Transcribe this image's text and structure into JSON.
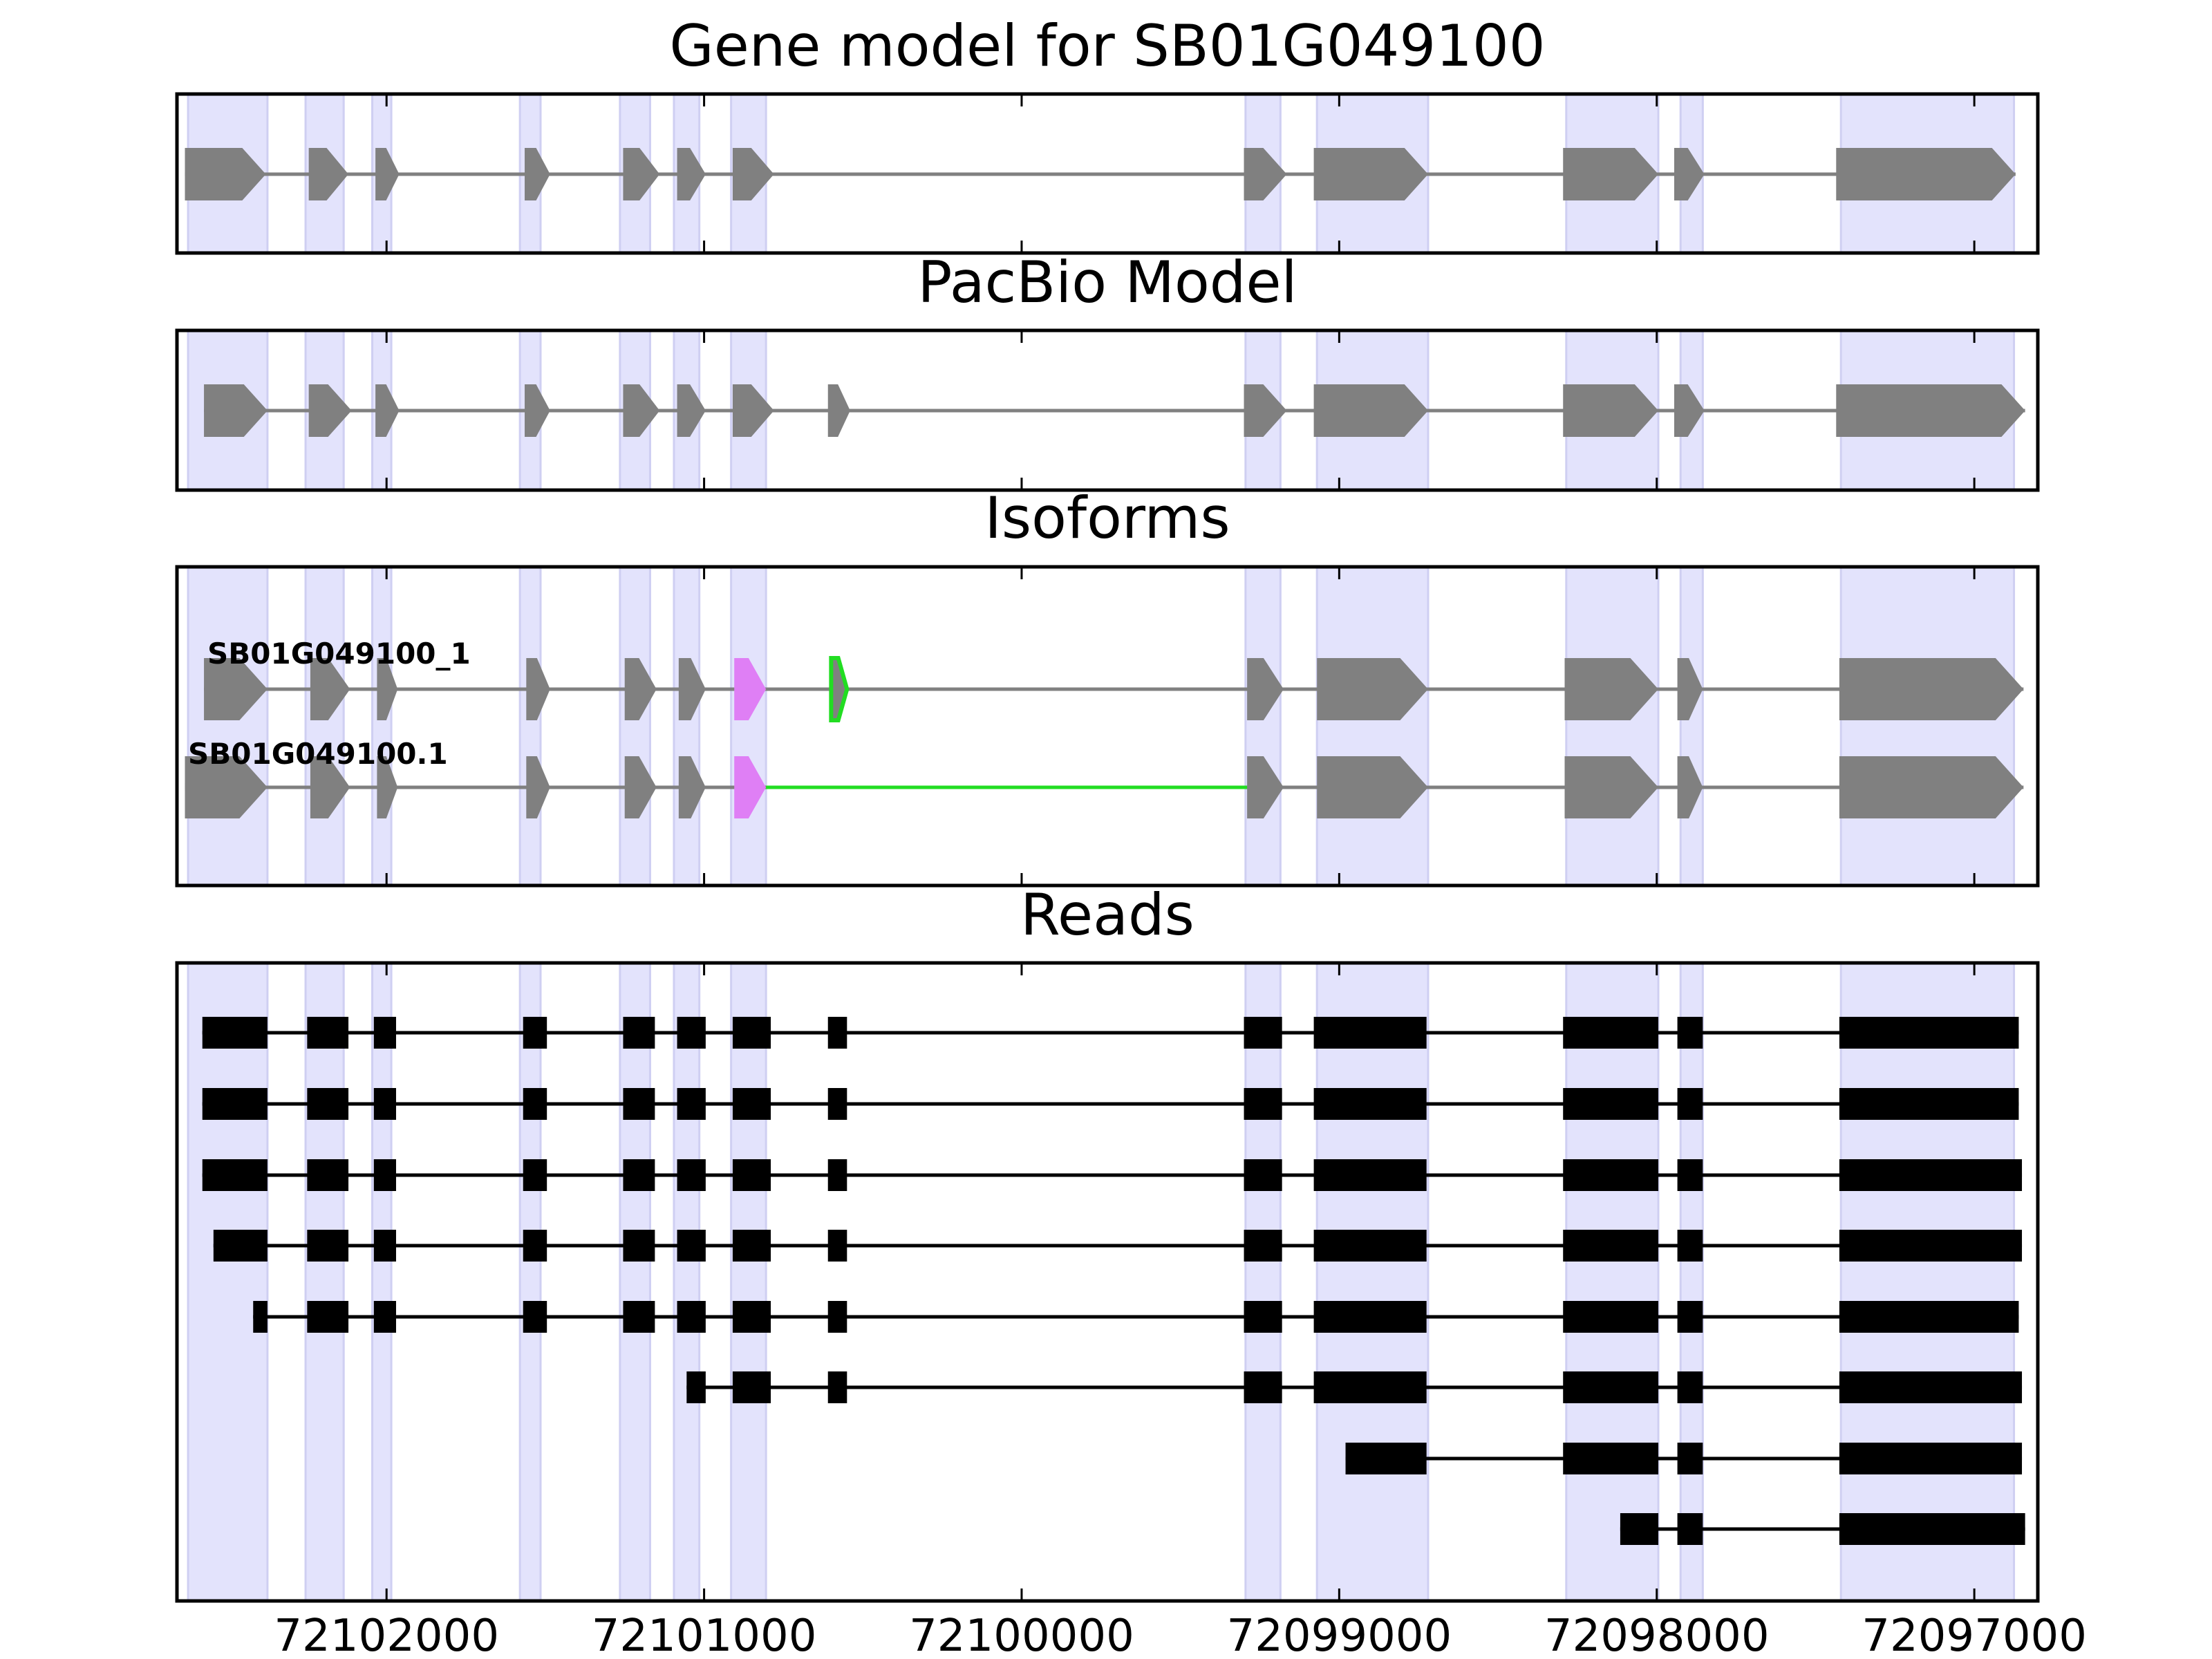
{
  "chart_data": {
    "type": "gene_model_tracks",
    "strand": "-",
    "x_axis_reversed": true,
    "xlim": [
      72102660,
      72096800
    ],
    "xticks": [
      72102000,
      72101000,
      72100000,
      72099000,
      72098000,
      72097000
    ],
    "xtick_labels": [
      "72102000",
      "72101000",
      "72100000",
      "72099000",
      "72098000",
      "72097000"
    ],
    "highlight_color": "#e3e3fc",
    "gene_color": "#808080",
    "read_color": "#000000",
    "alt_exon_color": "#df7ff5",
    "alt_junction_color": "#22dd22",
    "highlight_regions": [
      [
        72102625,
        72102375
      ],
      [
        72102255,
        72102135
      ],
      [
        72102045,
        72101985
      ],
      [
        72101580,
        72101515
      ],
      [
        72101265,
        72101170
      ],
      [
        72101095,
        72101015
      ],
      [
        72100915,
        72100805
      ],
      [
        72099295,
        72099185
      ],
      [
        72099070,
        72098720
      ],
      [
        72098285,
        72097995
      ],
      [
        72097925,
        72097855
      ],
      [
        72097420,
        72096875
      ]
    ],
    "panels": [
      {
        "title": "Gene model for SB01G049100",
        "tracks": [
          {
            "label": "",
            "exons": [
              [
                72102635,
                72102380
              ],
              [
                72102245,
                72102120
              ],
              [
                72102035,
                72101960
              ],
              [
                72101565,
                72101485
              ],
              [
                72101255,
                72101140
              ],
              [
                72101085,
                72100995
              ],
              [
                72100910,
                72100780
              ],
              [
                72099300,
                72099165
              ],
              [
                72099080,
                72098720
              ],
              [
                72098295,
                72097995
              ],
              [
                72097945,
                72097850
              ],
              [
                72097435,
                72096870
              ]
            ]
          }
        ]
      },
      {
        "title": "PacBio Model",
        "tracks": [
          {
            "label": "",
            "exons": [
              [
                72102575,
                72102375
              ],
              [
                72102245,
                72102110
              ],
              [
                72102035,
                72101960
              ],
              [
                72101565,
                72101485
              ],
              [
                72101255,
                72101140
              ],
              [
                72101085,
                72100995
              ],
              [
                72100910,
                72100780
              ],
              [
                72100610,
                72100540
              ],
              [
                72099300,
                72099165
              ],
              [
                72099080,
                72098720
              ],
              [
                72098295,
                72097995
              ],
              [
                72097945,
                72097850
              ],
              [
                72097435,
                72096840
              ]
            ]
          }
        ]
      },
      {
        "title": "Isoforms",
        "tracks": [
          {
            "label": "SB01G049100_1",
            "exons": [
              [
                72102575,
                72102375
              ],
              [
                72102240,
                72102115
              ],
              [
                72102030,
                72101965
              ],
              [
                72101560,
                72101485
              ],
              [
                72101250,
                72101150
              ],
              [
                72101080,
                72100995
              ],
              [
                72100905,
                72100805,
                "alt"
              ],
              [
                72100600,
                72100550,
                "alt_junction"
              ],
              [
                72099290,
                72099175
              ],
              [
                72099070,
                72098720
              ],
              [
                72098290,
                72097995
              ],
              [
                72097935,
                72097855
              ],
              [
                72097425,
                72096845
              ]
            ]
          },
          {
            "label": "SB01G049100.1",
            "exons": [
              [
                72102635,
                72102375
              ],
              [
                72102240,
                72102115
              ],
              [
                72102030,
                72101965
              ],
              [
                72101560,
                72101485
              ],
              [
                72101250,
                72101150
              ],
              [
                72101080,
                72100995
              ],
              [
                72100905,
                72100805,
                "alt"
              ],
              [
                72099290,
                72099175
              ],
              [
                72099070,
                72098720
              ],
              [
                72098290,
                72097995
              ],
              [
                72097935,
                72097855
              ],
              [
                72097425,
                72096845
              ]
            ],
            "alt_junctions": [
              [
                72100805,
                72099290
              ]
            ]
          }
        ]
      },
      {
        "title": "Reads",
        "tracks": [
          {
            "label": "",
            "exons": [
              [
                72102580,
                72102375
              ],
              [
                72102250,
                72102120
              ],
              [
                72102040,
                72101970
              ],
              [
                72101570,
                72101495
              ],
              [
                72101255,
                72101155
              ],
              [
                72101085,
                72100995
              ],
              [
                72100910,
                72100790
              ],
              [
                72100610,
                72100550
              ],
              [
                72099300,
                72099180
              ],
              [
                72099080,
                72098725
              ],
              [
                72098295,
                72097995
              ],
              [
                72097935,
                72097855
              ],
              [
                72097425,
                72096860
              ]
            ]
          },
          {
            "label": "",
            "exons": [
              [
                72102580,
                72102375
              ],
              [
                72102250,
                72102120
              ],
              [
                72102040,
                72101970
              ],
              [
                72101570,
                72101495
              ],
              [
                72101255,
                72101155
              ],
              [
                72101085,
                72100995
              ],
              [
                72100910,
                72100790
              ],
              [
                72100610,
                72100550
              ],
              [
                72099300,
                72099180
              ],
              [
                72099080,
                72098725
              ],
              [
                72098295,
                72097995
              ],
              [
                72097935,
                72097855
              ],
              [
                72097425,
                72096860
              ]
            ]
          },
          {
            "label": "",
            "exons": [
              [
                72102580,
                72102375
              ],
              [
                72102250,
                72102120
              ],
              [
                72102040,
                72101970
              ],
              [
                72101570,
                72101495
              ],
              [
                72101255,
                72101155
              ],
              [
                72101085,
                72100995
              ],
              [
                72100910,
                72100790
              ],
              [
                72100610,
                72100550
              ],
              [
                72099300,
                72099180
              ],
              [
                72099080,
                72098725
              ],
              [
                72098295,
                72097995
              ],
              [
                72097935,
                72097855
              ],
              [
                72097425,
                72096850
              ]
            ]
          },
          {
            "label": "",
            "exons": [
              [
                72102545,
                72102375
              ],
              [
                72102250,
                72102120
              ],
              [
                72102040,
                72101970
              ],
              [
                72101570,
                72101495
              ],
              [
                72101255,
                72101155
              ],
              [
                72101085,
                72100995
              ],
              [
                72100910,
                72100790
              ],
              [
                72100610,
                72100550
              ],
              [
                72099300,
                72099180
              ],
              [
                72099080,
                72098725
              ],
              [
                72098295,
                72097995
              ],
              [
                72097935,
                72097855
              ],
              [
                72097425,
                72096850
              ]
            ]
          },
          {
            "label": "",
            "exons": [
              [
                72102420,
                72102375
              ],
              [
                72102250,
                72102120
              ],
              [
                72102040,
                72101970
              ],
              [
                72101570,
                72101495
              ],
              [
                72101255,
                72101155
              ],
              [
                72101085,
                72100995
              ],
              [
                72100910,
                72100790
              ],
              [
                72100610,
                72100550
              ],
              [
                72099300,
                72099180
              ],
              [
                72099080,
                72098725
              ],
              [
                72098295,
                72097995
              ],
              [
                72097935,
                72097855
              ],
              [
                72097425,
                72096860
              ]
            ]
          },
          {
            "label": "",
            "exons": [
              [
                72101055,
                72100995
              ],
              [
                72100910,
                72100790
              ],
              [
                72100610,
                72100550
              ],
              [
                72099300,
                72099180
              ],
              [
                72099080,
                72098725
              ],
              [
                72098295,
                72097995
              ],
              [
                72097935,
                72097855
              ],
              [
                72097425,
                72096850
              ]
            ]
          },
          {
            "label": "",
            "exons": [
              [
                72098980,
                72098725
              ],
              [
                72098295,
                72097995
              ],
              [
                72097935,
                72097855
              ],
              [
                72097425,
                72096850
              ]
            ]
          },
          {
            "label": "",
            "exons": [
              [
                72098115,
                72097995
              ],
              [
                72097935,
                72097855
              ],
              [
                72097425,
                72096840
              ]
            ]
          }
        ]
      }
    ]
  }
}
